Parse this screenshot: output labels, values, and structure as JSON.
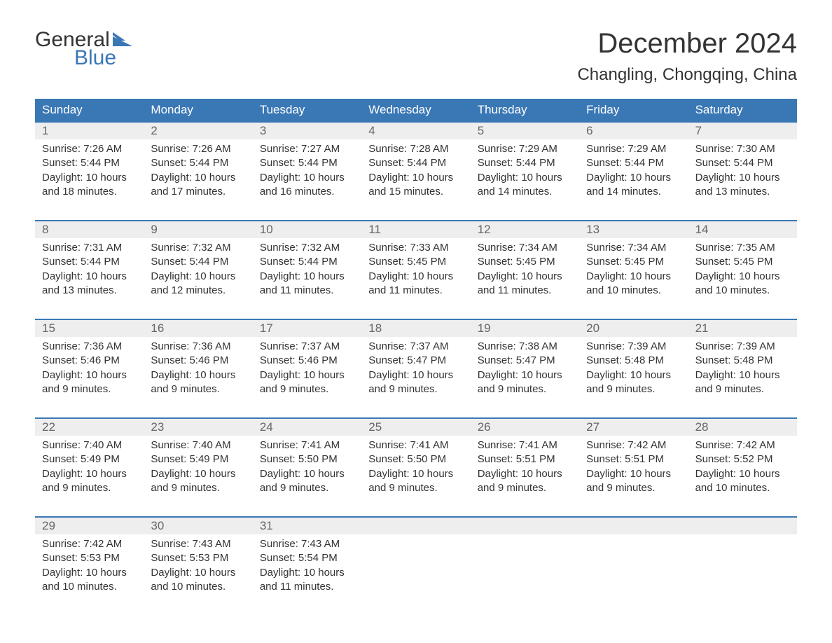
{
  "logo": {
    "text1": "General",
    "text2": "Blue"
  },
  "title": "December 2024",
  "location": "Changling, Chongqing, China",
  "colors": {
    "header_bg": "#3a77b5",
    "header_text": "#ffffff",
    "daynum_bg": "#eeeeee",
    "daynum_text": "#666666",
    "body_text": "#333333",
    "week_border": "#3a77b5"
  },
  "day_names": [
    "Sunday",
    "Monday",
    "Tuesday",
    "Wednesday",
    "Thursday",
    "Friday",
    "Saturday"
  ],
  "weeks": [
    [
      {
        "n": "1",
        "sunrise": "7:26 AM",
        "sunset": "5:44 PM",
        "daylight": "10 hours and 18 minutes."
      },
      {
        "n": "2",
        "sunrise": "7:26 AM",
        "sunset": "5:44 PM",
        "daylight": "10 hours and 17 minutes."
      },
      {
        "n": "3",
        "sunrise": "7:27 AM",
        "sunset": "5:44 PM",
        "daylight": "10 hours and 16 minutes."
      },
      {
        "n": "4",
        "sunrise": "7:28 AM",
        "sunset": "5:44 PM",
        "daylight": "10 hours and 15 minutes."
      },
      {
        "n": "5",
        "sunrise": "7:29 AM",
        "sunset": "5:44 PM",
        "daylight": "10 hours and 14 minutes."
      },
      {
        "n": "6",
        "sunrise": "7:29 AM",
        "sunset": "5:44 PM",
        "daylight": "10 hours and 14 minutes."
      },
      {
        "n": "7",
        "sunrise": "7:30 AM",
        "sunset": "5:44 PM",
        "daylight": "10 hours and 13 minutes."
      }
    ],
    [
      {
        "n": "8",
        "sunrise": "7:31 AM",
        "sunset": "5:44 PM",
        "daylight": "10 hours and 13 minutes."
      },
      {
        "n": "9",
        "sunrise": "7:32 AM",
        "sunset": "5:44 PM",
        "daylight": "10 hours and 12 minutes."
      },
      {
        "n": "10",
        "sunrise": "7:32 AM",
        "sunset": "5:44 PM",
        "daylight": "10 hours and 11 minutes."
      },
      {
        "n": "11",
        "sunrise": "7:33 AM",
        "sunset": "5:45 PM",
        "daylight": "10 hours and 11 minutes."
      },
      {
        "n": "12",
        "sunrise": "7:34 AM",
        "sunset": "5:45 PM",
        "daylight": "10 hours and 11 minutes."
      },
      {
        "n": "13",
        "sunrise": "7:34 AM",
        "sunset": "5:45 PM",
        "daylight": "10 hours and 10 minutes."
      },
      {
        "n": "14",
        "sunrise": "7:35 AM",
        "sunset": "5:45 PM",
        "daylight": "10 hours and 10 minutes."
      }
    ],
    [
      {
        "n": "15",
        "sunrise": "7:36 AM",
        "sunset": "5:46 PM",
        "daylight": "10 hours and 9 minutes."
      },
      {
        "n": "16",
        "sunrise": "7:36 AM",
        "sunset": "5:46 PM",
        "daylight": "10 hours and 9 minutes."
      },
      {
        "n": "17",
        "sunrise": "7:37 AM",
        "sunset": "5:46 PM",
        "daylight": "10 hours and 9 minutes."
      },
      {
        "n": "18",
        "sunrise": "7:37 AM",
        "sunset": "5:47 PM",
        "daylight": "10 hours and 9 minutes."
      },
      {
        "n": "19",
        "sunrise": "7:38 AM",
        "sunset": "5:47 PM",
        "daylight": "10 hours and 9 minutes."
      },
      {
        "n": "20",
        "sunrise": "7:39 AM",
        "sunset": "5:48 PM",
        "daylight": "10 hours and 9 minutes."
      },
      {
        "n": "21",
        "sunrise": "7:39 AM",
        "sunset": "5:48 PM",
        "daylight": "10 hours and 9 minutes."
      }
    ],
    [
      {
        "n": "22",
        "sunrise": "7:40 AM",
        "sunset": "5:49 PM",
        "daylight": "10 hours and 9 minutes."
      },
      {
        "n": "23",
        "sunrise": "7:40 AM",
        "sunset": "5:49 PM",
        "daylight": "10 hours and 9 minutes."
      },
      {
        "n": "24",
        "sunrise": "7:41 AM",
        "sunset": "5:50 PM",
        "daylight": "10 hours and 9 minutes."
      },
      {
        "n": "25",
        "sunrise": "7:41 AM",
        "sunset": "5:50 PM",
        "daylight": "10 hours and 9 minutes."
      },
      {
        "n": "26",
        "sunrise": "7:41 AM",
        "sunset": "5:51 PM",
        "daylight": "10 hours and 9 minutes."
      },
      {
        "n": "27",
        "sunrise": "7:42 AM",
        "sunset": "5:51 PM",
        "daylight": "10 hours and 9 minutes."
      },
      {
        "n": "28",
        "sunrise": "7:42 AM",
        "sunset": "5:52 PM",
        "daylight": "10 hours and 10 minutes."
      }
    ],
    [
      {
        "n": "29",
        "sunrise": "7:42 AM",
        "sunset": "5:53 PM",
        "daylight": "10 hours and 10 minutes."
      },
      {
        "n": "30",
        "sunrise": "7:43 AM",
        "sunset": "5:53 PM",
        "daylight": "10 hours and 10 minutes."
      },
      {
        "n": "31",
        "sunrise": "7:43 AM",
        "sunset": "5:54 PM",
        "daylight": "10 hours and 11 minutes."
      },
      null,
      null,
      null,
      null
    ]
  ],
  "labels": {
    "sunrise_prefix": "Sunrise: ",
    "sunset_prefix": "Sunset: ",
    "daylight_prefix": "Daylight: "
  }
}
